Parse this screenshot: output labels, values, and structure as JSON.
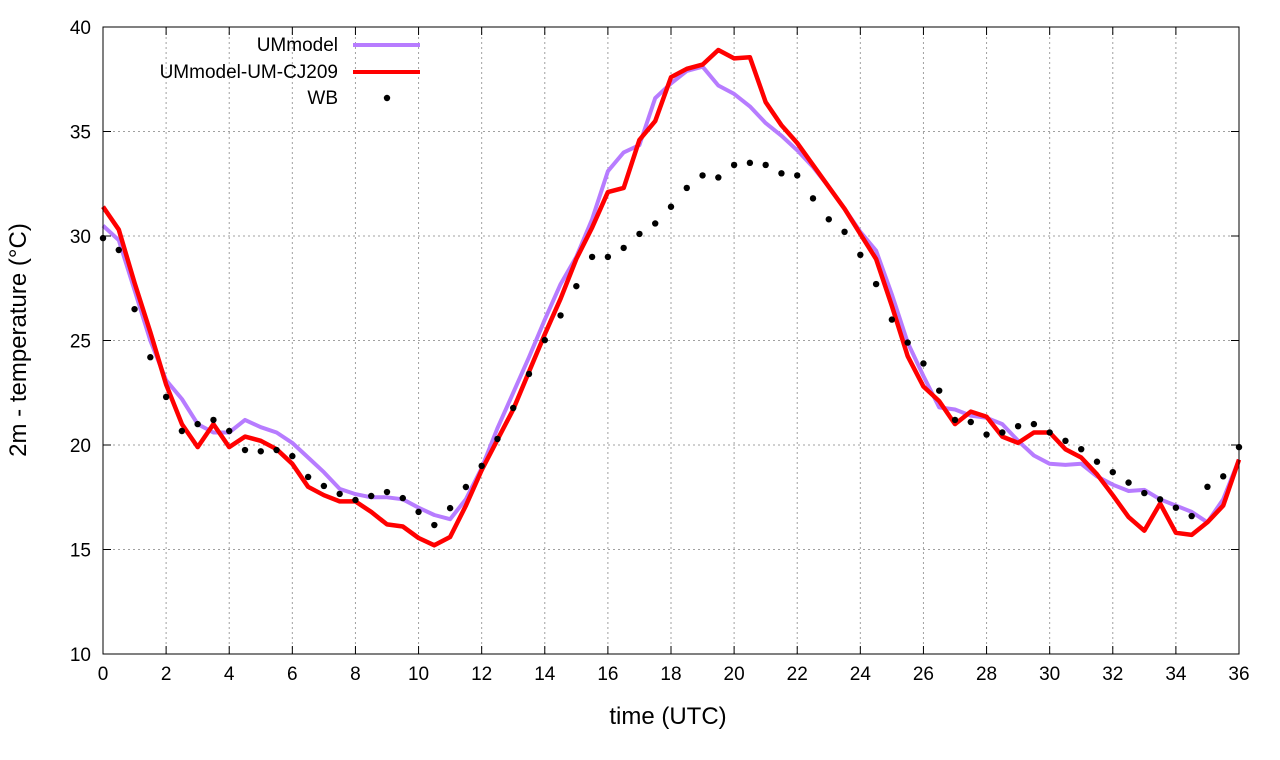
{
  "chart_data": {
    "type": "line",
    "title": "",
    "xlabel": "time (UTC)",
    "ylabel": "2m - temperature (°C)",
    "xlim": [
      0,
      36
    ],
    "ylim": [
      10,
      40
    ],
    "xticks": [
      0,
      2,
      4,
      6,
      8,
      10,
      12,
      14,
      16,
      18,
      20,
      22,
      24,
      26,
      28,
      30,
      32,
      34,
      36
    ],
    "yticks": [
      10,
      15,
      20,
      25,
      30,
      35,
      40
    ],
    "grid": true,
    "legend_position": "top-left",
    "x": [
      0,
      0.5,
      1,
      1.5,
      2,
      2.5,
      3,
      3.5,
      4,
      4.5,
      5,
      5.5,
      6,
      6.5,
      7,
      7.5,
      8,
      8.5,
      9,
      9.5,
      10,
      10.5,
      11,
      11.5,
      12,
      12.5,
      13,
      13.5,
      14,
      14.5,
      15,
      15.5,
      16,
      16.5,
      17,
      17.5,
      18,
      18.5,
      19,
      19.5,
      20,
      20.5,
      21,
      21.5,
      22,
      22.5,
      23,
      23.5,
      24,
      24.5,
      25,
      25.5,
      26,
      26.5,
      27,
      27.5,
      28,
      28.5,
      29,
      29.5,
      30,
      30.5,
      31,
      31.5,
      32,
      32.5,
      33,
      33.5,
      34,
      34.5,
      35,
      35.5,
      36
    ],
    "series": [
      {
        "name": "UMmodel",
        "style": "line",
        "color": "#b77cff",
        "values": [
          30.5,
          29.8,
          27.4,
          25.0,
          23.1,
          22.2,
          21.0,
          20.6,
          20.6,
          21.2,
          20.85,
          20.6,
          20.1,
          19.4,
          18.7,
          17.9,
          17.65,
          17.5,
          17.5,
          17.4,
          17.0,
          16.65,
          16.45,
          17.4,
          18.9,
          20.8,
          22.5,
          24.2,
          26.0,
          27.7,
          29.0,
          30.8,
          33.1,
          34.0,
          34.35,
          36.6,
          37.3,
          37.9,
          38.1,
          37.2,
          36.8,
          36.2,
          35.4,
          34.8,
          34.1,
          33.3,
          32.35,
          31.3,
          30.2,
          29.3,
          27.2,
          24.9,
          23.3,
          21.8,
          21.7,
          21.4,
          21.3,
          21.0,
          20.2,
          19.5,
          19.1,
          19.05,
          19.1,
          18.5,
          18.1,
          17.8,
          17.85,
          17.4,
          17.1,
          16.8,
          16.3,
          17.4,
          19.3
        ]
      },
      {
        "name": "UMmodel-UM-CJ209",
        "style": "line",
        "color": "#ff0000",
        "values": [
          31.4,
          30.3,
          27.75,
          25.4,
          22.9,
          21.0,
          19.9,
          21.0,
          19.9,
          20.4,
          20.2,
          19.8,
          19.1,
          18.0,
          17.6,
          17.3,
          17.3,
          16.8,
          16.2,
          16.1,
          15.55,
          15.2,
          15.6,
          17.1,
          18.8,
          20.25,
          21.7,
          23.5,
          25.3,
          27.0,
          28.9,
          30.4,
          32.1,
          32.3,
          34.6,
          35.5,
          37.6,
          38.0,
          38.2,
          38.9,
          38.5,
          38.55,
          36.4,
          35.3,
          34.45,
          33.4,
          32.35,
          31.3,
          30.1,
          28.9,
          26.65,
          24.25,
          22.8,
          22.1,
          21.0,
          21.6,
          21.35,
          20.4,
          20.1,
          20.6,
          20.6,
          19.8,
          19.4,
          18.6,
          17.6,
          16.55,
          15.9,
          17.2,
          15.8,
          15.7,
          16.3,
          17.1,
          19.3
        ]
      },
      {
        "name": "WB",
        "style": "points",
        "color": "#000000",
        "values": [
          29.9,
          29.33,
          26.5,
          24.2,
          22.3,
          20.67,
          21.0,
          21.2,
          20.67,
          19.76,
          19.7,
          19.76,
          19.47,
          18.47,
          18.04,
          17.66,
          17.37,
          17.56,
          17.75,
          17.46,
          16.8,
          16.17,
          16.98,
          17.99,
          19.0,
          20.29,
          21.77,
          23.4,
          25.02,
          26.2,
          27.6,
          29.0,
          29.0,
          29.43,
          30.1,
          30.6,
          31.4,
          32.3,
          32.9,
          32.8,
          33.4,
          33.5,
          33.4,
          33.0,
          32.9,
          31.8,
          30.8,
          30.2,
          29.1,
          27.7,
          26.0,
          24.9,
          23.9,
          22.6,
          21.2,
          21.1,
          20.5,
          20.6,
          20.9,
          21.0,
          20.6,
          20.2,
          19.8,
          19.2,
          18.7,
          18.2,
          17.7,
          17.4,
          17.0,
          16.6,
          18.0,
          18.5,
          19.9
        ]
      }
    ]
  }
}
